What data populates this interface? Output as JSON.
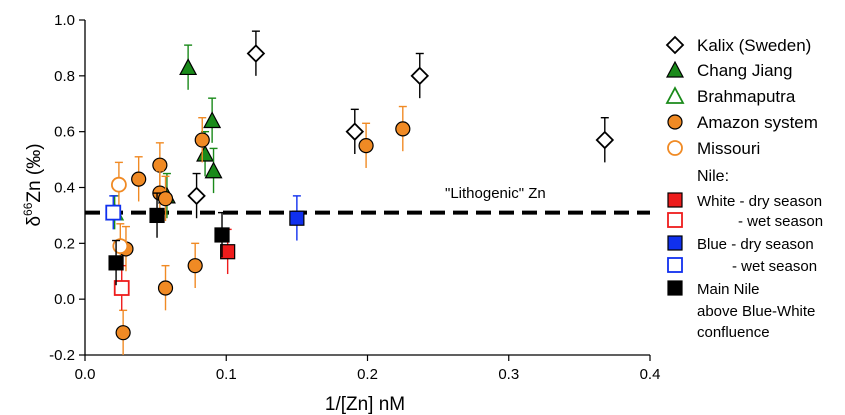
{
  "chart_data": {
    "type": "scatter",
    "xlabel": "1/[Zn] nM",
    "ylabel": {
      "prefix": "δ",
      "sup": "66",
      "suffix": "Zn (‰)"
    },
    "xlim": [
      0,
      0.4
    ],
    "ylim": [
      -0.2,
      1.0
    ],
    "x_ticks": [
      "0.0",
      "0.1",
      "0.2",
      "0.3",
      "0.4"
    ],
    "y_ticks": [
      "-0.2",
      "0.0",
      "0.2",
      "0.4",
      "0.6",
      "0.8",
      "1.0"
    ],
    "x_tick_values": [
      0,
      0.1,
      0.2,
      0.3,
      0.4
    ],
    "y_tick_values": [
      -0.2,
      0,
      0.2,
      0.4,
      0.6,
      0.8,
      1.0
    ],
    "grid": false,
    "legend_position": "right",
    "reference_line": {
      "y": 0.31,
      "style": "dashed",
      "label": "\"Lithogenic\" Zn"
    },
    "series": [
      {
        "name": "Kalix (Sweden)",
        "marker": "diamond-open",
        "color": "#000000",
        "errorbar_color": "#000000",
        "points": [
          {
            "x": 0.121,
            "y": 0.88,
            "err": 0.08
          },
          {
            "x": 0.191,
            "y": 0.6,
            "err": 0.08
          },
          {
            "x": 0.237,
            "y": 0.8,
            "err": 0.08
          },
          {
            "x": 0.368,
            "y": 0.57,
            "err": 0.08
          },
          {
            "x": 0.079,
            "y": 0.37,
            "err": 0.08
          }
        ]
      },
      {
        "name": "Chang Jiang",
        "marker": "triangle-filled",
        "color": "#1a8a1a",
        "errorbar_color": "#1a8a1a",
        "points": [
          {
            "x": 0.073,
            "y": 0.83,
            "err": 0.08
          },
          {
            "x": 0.09,
            "y": 0.64,
            "err": 0.08
          },
          {
            "x": 0.085,
            "y": 0.52,
            "err": 0.08
          },
          {
            "x": 0.091,
            "y": 0.46,
            "err": 0.08
          },
          {
            "x": 0.058,
            "y": 0.37,
            "err": 0.08
          }
        ]
      },
      {
        "name": "Brahmaputra",
        "marker": "triangle-open",
        "color": "#1a8a1a",
        "errorbar_color": "#1a8a1a",
        "points": [
          {
            "x": 0.021,
            "y": 0.31,
            "err": 0.06
          }
        ]
      },
      {
        "name": "Amazon system",
        "marker": "circle-filled",
        "color": "#f08a24",
        "errorbar_color": "#f08a24",
        "points": [
          {
            "x": 0.038,
            "y": 0.43,
            "err": 0.08
          },
          {
            "x": 0.053,
            "y": 0.48,
            "err": 0.08
          },
          {
            "x": 0.053,
            "y": 0.38,
            "err": 0.08
          },
          {
            "x": 0.057,
            "y": 0.36,
            "err": 0.08
          },
          {
            "x": 0.083,
            "y": 0.57,
            "err": 0.08
          },
          {
            "x": 0.078,
            "y": 0.12,
            "err": 0.08
          },
          {
            "x": 0.057,
            "y": 0.04,
            "err": 0.08
          },
          {
            "x": 0.029,
            "y": 0.18,
            "err": 0.08
          },
          {
            "x": 0.027,
            "y": -0.12,
            "err": 0.08
          },
          {
            "x": 0.199,
            "y": 0.55,
            "err": 0.08
          },
          {
            "x": 0.225,
            "y": 0.61,
            "err": 0.08
          }
        ]
      },
      {
        "name": "Missouri",
        "marker": "circle-open",
        "color": "#f08a24",
        "errorbar_color": "#f08a24",
        "points": [
          {
            "x": 0.024,
            "y": 0.41,
            "err": 0.08
          },
          {
            "x": 0.025,
            "y": 0.19,
            "err": 0.08
          }
        ]
      },
      {
        "name": "Nile: White - dry season",
        "marker": "square-filled",
        "color": "#ee1c1c",
        "errorbar_color": "#ee1c1c",
        "points": [
          {
            "x": 0.101,
            "y": 0.17,
            "err": 0.08
          }
        ]
      },
      {
        "name": "Nile: White - wet season",
        "marker": "square-open",
        "color": "#ee1c1c",
        "errorbar_color": "#ee1c1c",
        "points": [
          {
            "x": 0.026,
            "y": 0.04,
            "err": 0.08
          }
        ]
      },
      {
        "name": "Nile: Blue - dry season",
        "marker": "square-filled",
        "color": "#1030ee",
        "errorbar_color": "#1030ee",
        "points": [
          {
            "x": 0.15,
            "y": 0.29,
            "err": 0.08
          }
        ]
      },
      {
        "name": "Nile: Blue - wet season",
        "marker": "square-open",
        "color": "#1030ee",
        "errorbar_color": "#1030ee",
        "points": [
          {
            "x": 0.02,
            "y": 0.31,
            "err": 0.06
          }
        ]
      },
      {
        "name": "Main Nile above Blue-White confluence",
        "marker": "square-filled",
        "color": "#000000",
        "errorbar_color": "#000000",
        "points": [
          {
            "x": 0.051,
            "y": 0.3,
            "err": 0.08
          },
          {
            "x": 0.097,
            "y": 0.23,
            "err": 0.08
          },
          {
            "x": 0.022,
            "y": 0.13,
            "err": 0.08
          }
        ]
      }
    ],
    "legend": [
      {
        "label": "Kalix (Sweden)",
        "marker": "diamond-open",
        "color": "#000000"
      },
      {
        "label": "Chang Jiang",
        "marker": "triangle-filled",
        "color": "#1a8a1a"
      },
      {
        "label": "Brahmaputra",
        "marker": "triangle-open",
        "color": "#1a8a1a"
      },
      {
        "label": "Amazon system",
        "marker": "circle-filled",
        "color": "#f08a24"
      },
      {
        "label": "Missouri",
        "marker": "circle-open",
        "color": "#f08a24"
      },
      {
        "label": "Nile:",
        "marker": "none",
        "color": "#000000"
      },
      {
        "label": "White - dry season",
        "marker": "square-filled",
        "color": "#ee1c1c"
      },
      {
        "label": "- wet season",
        "marker": "square-open",
        "color": "#ee1c1c"
      },
      {
        "label": "Blue - dry season",
        "marker": "square-filled",
        "color": "#1030ee"
      },
      {
        "label": "- wet season",
        "marker": "square-open",
        "color": "#1030ee"
      },
      {
        "label": "Main Nile",
        "marker": "square-filled",
        "color": "#000000"
      },
      {
        "label": "above Blue-White",
        "marker": "none",
        "color": "#000000"
      },
      {
        "label": "confluence",
        "marker": "none",
        "color": "#000000"
      }
    ]
  }
}
